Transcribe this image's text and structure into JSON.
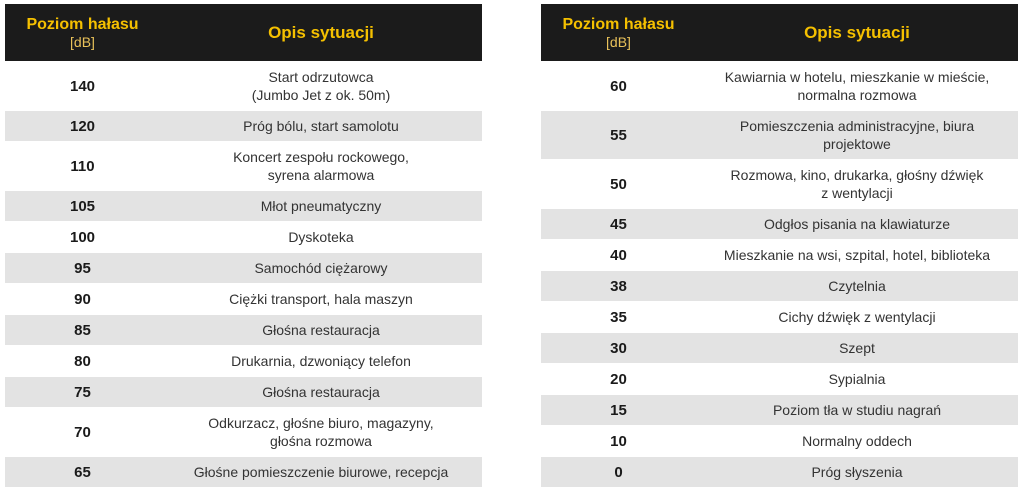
{
  "left_table": {
    "header_level": "Poziom hałasu",
    "header_unit": "[dB]",
    "header_desc": "Opis sytuacji",
    "rows": [
      {
        "level": "140",
        "lines": [
          "Start odrzutowca",
          "(Jumbo Jet z ok. 50m)"
        ]
      },
      {
        "level": "120",
        "lines": [
          "Próg bólu, start samolotu"
        ]
      },
      {
        "level": "110",
        "lines": [
          "Koncert zespołu rockowego,",
          "syrena alarmowa"
        ]
      },
      {
        "level": "105",
        "lines": [
          "Młot pneumatyczny"
        ]
      },
      {
        "level": "100",
        "lines": [
          "Dyskoteka"
        ]
      },
      {
        "level": "95",
        "lines": [
          "Samochód ciężarowy"
        ]
      },
      {
        "level": "90",
        "lines": [
          "Ciężki transport, hala maszyn"
        ]
      },
      {
        "level": "85",
        "lines": [
          "Głośna restauracja"
        ]
      },
      {
        "level": "80",
        "lines": [
          "Drukarnia, dzwoniący telefon"
        ]
      },
      {
        "level": "75",
        "lines": [
          "Głośna restauracja"
        ]
      },
      {
        "level": "70",
        "lines": [
          "Odkurzacz, głośne biuro, magazyny,",
          "głośna rozmowa"
        ]
      },
      {
        "level": "65",
        "lines": [
          "Głośne pomieszczenie biurowe, recepcja"
        ]
      }
    ]
  },
  "right_table": {
    "header_level": "Poziom hałasu",
    "header_unit": "[dB]",
    "header_desc": "Opis sytuacji",
    "rows": [
      {
        "level": "60",
        "lines": [
          "Kawiarnia w hotelu, mieszkanie w mieście,",
          "normalna rozmowa"
        ]
      },
      {
        "level": "55",
        "lines": [
          "Pomieszczenia administracyjne, biura",
          "projektowe"
        ]
      },
      {
        "level": "50",
        "lines": [
          "Rozmowa, kino, drukarka, głośny dźwięk",
          "z wentylacji"
        ]
      },
      {
        "level": "45",
        "lines": [
          "Odgłos pisania na klawiaturze"
        ]
      },
      {
        "level": "40",
        "lines": [
          "Mieszkanie na wsi, szpital, hotel, biblioteka"
        ]
      },
      {
        "level": "38",
        "lines": [
          "Czytelnia"
        ]
      },
      {
        "level": "35",
        "lines": [
          "Cichy dźwięk z wentylacji"
        ]
      },
      {
        "level": "30",
        "lines": [
          "Szept"
        ]
      },
      {
        "level": "20",
        "lines": [
          "Sypialnia"
        ]
      },
      {
        "level": "15",
        "lines": [
          "Poziom tła w studiu nagrań"
        ]
      },
      {
        "level": "10",
        "lines": [
          "Normalny oddech"
        ]
      },
      {
        "level": "0",
        "lines": [
          "Próg słyszenia"
        ]
      }
    ]
  }
}
